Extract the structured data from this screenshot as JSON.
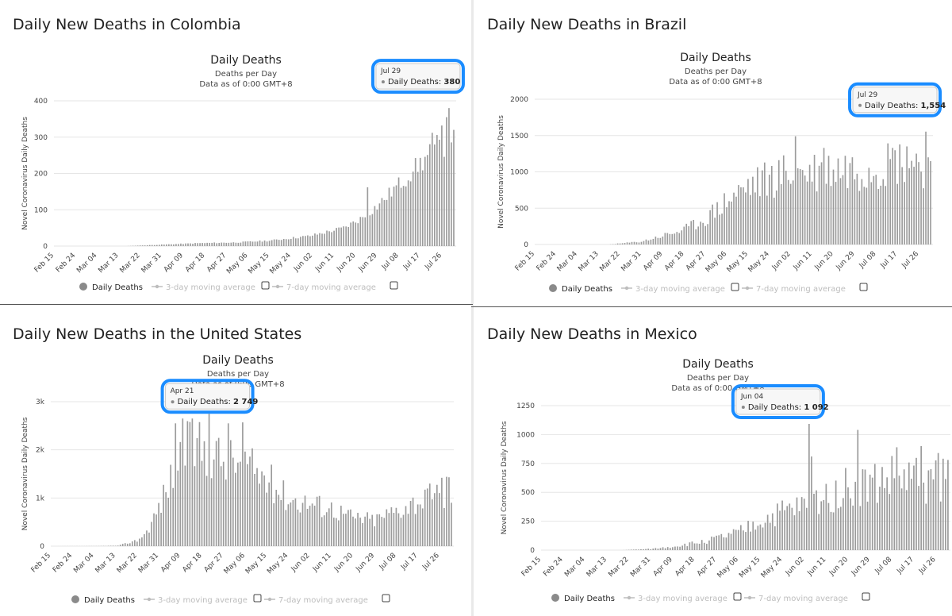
{
  "subtitle_line1": "Deaths per Day",
  "subtitle_line2": "Data as of 0:00 GMT+8",
  "legend": {
    "daily": "Daily Deaths",
    "ma3": "3-day moving average",
    "ma7": "7-day moving average"
  },
  "colors": {
    "bar": "#9b9b9b",
    "highlight": "#1a8cff",
    "grid": "#e6e6e6",
    "muted": "#bdbdbd"
  },
  "chart_data": [
    {
      "panel": "colombia",
      "type": "bar",
      "panel_title": "Daily New Deaths in Colombia",
      "title": "Daily Deaths",
      "subtitle": "Deaths per Day — Data as of 0:00 GMT+8",
      "ylabel": "Novel Coronavirus Daily Deaths",
      "ylim": [
        0,
        400
      ],
      "y_ticks": [
        "0",
        "100",
        "200",
        "300",
        "400"
      ],
      "x_ticks": [
        "Feb 15",
        "Feb 24",
        "Mar 04",
        "Mar 13",
        "Mar 22",
        "Mar 31",
        "Apr 09",
        "Apr 18",
        "Apr 27",
        "May 06",
        "May 15",
        "May 24",
        "Jun 02",
        "Jun 11",
        "Jun 20",
        "Jun 29",
        "Jul 08",
        "Jul 17",
        "Jul 26"
      ],
      "x_range": [
        "Feb 15",
        "Jul 31"
      ],
      "points": [
        [
          "Mar 16",
          0
        ],
        [
          "Mar 31",
          4
        ],
        [
          "Apr 15",
          8
        ],
        [
          "May 01",
          10
        ],
        [
          "May 15",
          15
        ],
        [
          "Jun 01",
          28
        ],
        [
          "Jun 15",
          50
        ],
        [
          "Jun 22",
          75
        ],
        [
          "Jun 29",
          110
        ],
        [
          "Jul 05",
          150
        ],
        [
          "Jul 12",
          195
        ],
        [
          "Jul 19",
          240
        ],
        [
          "Jul 24",
          270
        ],
        [
          "Jul 31",
          300
        ]
      ],
      "noise": 0.14,
      "seed": 11,
      "spikes": [
        [
          "Jun 25",
          162
        ],
        [
          "Jul 14",
          205
        ],
        [
          "Jul 22",
          312
        ],
        [
          "Jul 26",
          332
        ],
        [
          "Jul 28",
          355
        ],
        [
          "Jul 31",
          320
        ]
      ],
      "tooltip": {
        "date": "Jul 29",
        "label": "Daily Deaths:",
        "value": "380",
        "at": "Jul 29",
        "value_num": 380
      }
    },
    {
      "panel": "brazil",
      "type": "bar",
      "panel_title": "Daily New Deaths in Brazil",
      "title": "Daily Deaths",
      "subtitle": "Deaths per Day — Data as of 0:00 GMT+8",
      "ylabel": "Novel Coronavirus Daily Deaths",
      "ylim": [
        0,
        2000
      ],
      "y_ticks": [
        "0",
        "500",
        "1000",
        "1500",
        "2000"
      ],
      "x_ticks": [
        "Feb 15",
        "Feb 24",
        "Mar 04",
        "Mar 13",
        "Mar 22",
        "Mar 31",
        "Apr 09",
        "Apr 18",
        "Apr 27",
        "May 06",
        "May 15",
        "May 24",
        "Jun 02",
        "Jun 11",
        "Jun 20",
        "Jun 29",
        "Jul 08",
        "Jul 17",
        "Jul 26"
      ],
      "x_range": [
        "Feb 15",
        "Jul 31"
      ],
      "points": [
        [
          "Mar 17",
          0
        ],
        [
          "Mar 31",
          40
        ],
        [
          "Apr 09",
          120
        ],
        [
          "Apr 18",
          200
        ],
        [
          "Apr 27",
          350
        ],
        [
          "May 06",
          600
        ],
        [
          "May 15",
          800
        ],
        [
          "May 24",
          900
        ],
        [
          "Jun 02",
          1000
        ],
        [
          "Jun 11",
          1000
        ],
        [
          "Jun 20",
          1050
        ],
        [
          "Jun 29",
          1050
        ],
        [
          "Jul 08",
          1100
        ],
        [
          "Jul 17",
          1150
        ],
        [
          "Jul 26",
          1150
        ],
        [
          "Jul 31",
          1000
        ]
      ],
      "noise": 0.32,
      "seed": 23,
      "spikes": [
        [
          "Jun 04",
          1490
        ],
        [
          "Jun 16",
          1330
        ],
        [
          "Jul 15",
          1330
        ],
        [
          "Jul 21",
          1350
        ],
        [
          "Jul 30",
          1200
        ]
      ],
      "tooltip": {
        "date": "Jul 29",
        "label": "Daily Deaths:",
        "value": "1,554",
        "at": "Jul 29",
        "value_num": 1554
      }
    },
    {
      "panel": "united-states",
      "type": "bar",
      "panel_title": "Daily New Deaths in the United States",
      "title": "Daily Deaths",
      "subtitle": "Deaths per Day — Data as of 0:00 GMT+8",
      "ylabel": "Novel Coronavirus Daily Deaths",
      "ylim": [
        0,
        3000
      ],
      "y_ticks": [
        "0",
        "1k",
        "2k",
        "3k"
      ],
      "x_ticks": [
        "Feb 15",
        "Feb 24",
        "Mar 04",
        "Mar 13",
        "Mar 22",
        "Mar 31",
        "Apr 09",
        "Apr 18",
        "Apr 27",
        "May 06",
        "May 15",
        "May 24",
        "Jun 02",
        "Jun 11",
        "Jun 20",
        "Jun 29",
        "Jul 08",
        "Jul 17",
        "Jul 26"
      ],
      "x_range": [
        "Feb 15",
        "Jul 31"
      ],
      "points": [
        [
          "Feb 15",
          0
        ],
        [
          "Mar 05",
          2
        ],
        [
          "Mar 14",
          10
        ],
        [
          "Mar 22",
          120
        ],
        [
          "Mar 26",
          300
        ],
        [
          "Mar 31",
          800
        ],
        [
          "Apr 05",
          1400
        ],
        [
          "Apr 09",
          1900
        ],
        [
          "Apr 15",
          2100
        ],
        [
          "Apr 21",
          2000
        ],
        [
          "Apr 27",
          1800
        ],
        [
          "May 06",
          1700
        ],
        [
          "May 15",
          1400
        ],
        [
          "May 24",
          1000
        ],
        [
          "Jun 02",
          900
        ],
        [
          "Jun 11",
          800
        ],
        [
          "Jun 20",
          600
        ],
        [
          "Jun 29",
          550
        ],
        [
          "Jul 08",
          750
        ],
        [
          "Jul 17",
          950
        ],
        [
          "Jul 26",
          1050
        ],
        [
          "Jul 31",
          1050
        ]
      ],
      "noise": 0.3,
      "seed": 37,
      "spikes": [
        [
          "Apr 07",
          2550
        ],
        [
          "Apr 10",
          2650
        ],
        [
          "Apr 14",
          2650
        ],
        [
          "Apr 29",
          2550
        ],
        [
          "May 05",
          2570
        ],
        [
          "Jul 27",
          1420
        ],
        [
          "Jul 29",
          1440
        ],
        [
          "Jul 30",
          1430
        ]
      ],
      "tooltip": {
        "date": "Apr 21",
        "label": "Daily Deaths:",
        "value": "2 749",
        "at": "Apr 21",
        "value_num": 2749
      }
    },
    {
      "panel": "mexico",
      "type": "bar",
      "panel_title": "Daily New Deaths in Mexico",
      "title": "Daily Deaths",
      "subtitle": "Deaths per Day — Data as of 0:00 GMT+8",
      "ylabel": "Novel Coronavirus Daily Deaths",
      "ylim": [
        0,
        1250
      ],
      "y_ticks": [
        "0",
        "250",
        "500",
        "750",
        "1000",
        "1250"
      ],
      "x_ticks": [
        "Feb 15",
        "Feb 24",
        "Mar 04",
        "Mar 13",
        "Mar 22",
        "Mar 31",
        "Apr 09",
        "Apr 18",
        "Apr 27",
        "May 06",
        "May 15",
        "May 24",
        "Jun 02",
        "Jun 11",
        "Jun 20",
        "Jun 29",
        "Jul 08",
        "Jul 17",
        "Jul 26"
      ],
      "x_range": [
        "Feb 15",
        "Jul 31"
      ],
      "points": [
        [
          "Mar 19",
          0
        ],
        [
          "Mar 31",
          10
        ],
        [
          "Apr 09",
          30
        ],
        [
          "Apr 18",
          60
        ],
        [
          "Apr 27",
          100
        ],
        [
          "May 06",
          150
        ],
        [
          "May 15",
          250
        ],
        [
          "May 24",
          330
        ],
        [
          "Jun 02",
          380
        ],
        [
          "Jun 11",
          470
        ],
        [
          "Jun 20",
          550
        ],
        [
          "Jun 29",
          570
        ],
        [
          "Jul 08",
          620
        ],
        [
          "Jul 17",
          620
        ],
        [
          "Jul 26",
          600
        ],
        [
          "Jul 31",
          650
        ]
      ],
      "noise": 0.35,
      "seed": 51,
      "spikes": [
        [
          "Jun 05",
          810
        ],
        [
          "Jun 24",
          1040
        ],
        [
          "Jul 10",
          890
        ],
        [
          "Jul 20",
          900
        ],
        [
          "Jul 27",
          840
        ],
        [
          "Jul 31",
          780
        ]
      ],
      "tooltip": {
        "date": "Jun 04",
        "label": "Daily Deaths:",
        "value": "1 092",
        "at": "Jun 04",
        "value_num": 1092
      }
    }
  ]
}
